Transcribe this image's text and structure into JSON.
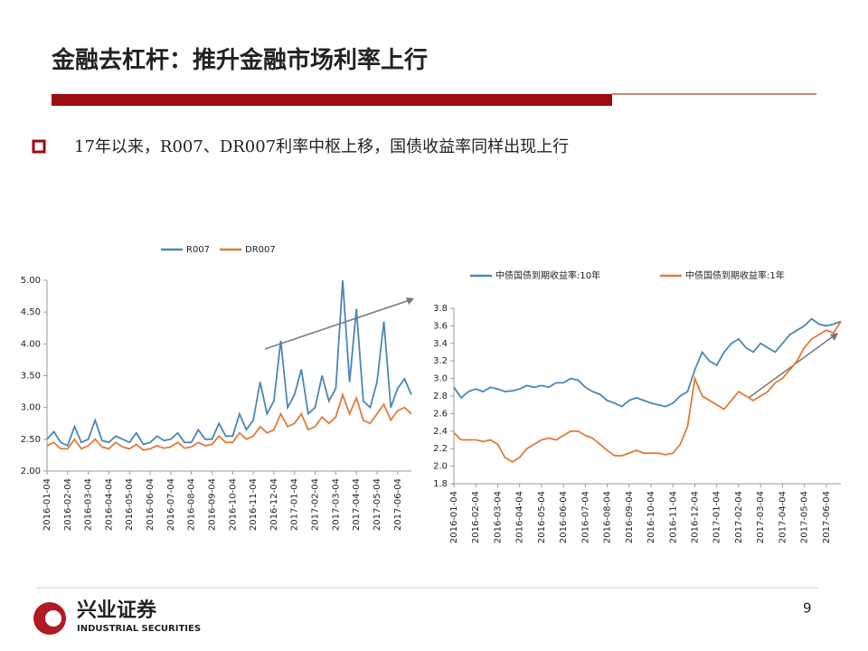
{
  "slide": {
    "title": "金融去杠杆：推升金融市场利率上行",
    "bullet": "17年以来，R007、DR007利率中枢上移，国债收益率同样出现上行",
    "page_number": "9",
    "logo_cn": "兴业证券",
    "logo_en": "INDUSTRIAL SECURITIES"
  },
  "chart_data": [
    {
      "type": "line",
      "grid": false,
      "categories": [
        "2016-01-04",
        null,
        null,
        "2016-02-04",
        null,
        null,
        "2016-03-04",
        null,
        null,
        "2016-04-04",
        null,
        null,
        "2016-05-04",
        null,
        null,
        "2016-06-04",
        null,
        null,
        "2016-07-04",
        null,
        null,
        "2016-08-04",
        null,
        null,
        "2016-09-04",
        null,
        null,
        "2016-10-04",
        null,
        null,
        "2016-11-04",
        null,
        null,
        "2016-12-04",
        null,
        null,
        "2017-01-04",
        null,
        null,
        "2017-02-04",
        null,
        null,
        "2017-03-04",
        null,
        null,
        "2017-04-04",
        null,
        null,
        "2017-05-04",
        null,
        null,
        "2017-06-04",
        null,
        null
      ],
      "series": [
        {
          "name": "R007",
          "color": "#4a86b8",
          "values": [
            2.5,
            2.62,
            2.45,
            2.4,
            2.7,
            2.45,
            2.5,
            2.8,
            2.48,
            2.45,
            2.55,
            2.5,
            2.45,
            2.6,
            2.42,
            2.45,
            2.55,
            2.48,
            2.5,
            2.6,
            2.45,
            2.45,
            2.65,
            2.5,
            2.5,
            2.75,
            2.55,
            2.55,
            2.9,
            2.65,
            2.8,
            3.4,
            2.9,
            3.1,
            4.05,
            3.0,
            3.2,
            3.6,
            2.9,
            3.0,
            3.5,
            3.1,
            3.3,
            5.0,
            3.4,
            4.55,
            3.1,
            3.0,
            3.4,
            4.35,
            3.0,
            3.3,
            3.45,
            3.2
          ]
        },
        {
          "name": "DR007",
          "color": "#e07b39",
          "values": [
            2.4,
            2.45,
            2.35,
            2.35,
            2.5,
            2.35,
            2.4,
            2.5,
            2.38,
            2.35,
            2.45,
            2.38,
            2.35,
            2.42,
            2.33,
            2.35,
            2.4,
            2.36,
            2.38,
            2.45,
            2.36,
            2.38,
            2.45,
            2.4,
            2.42,
            2.55,
            2.45,
            2.45,
            2.6,
            2.5,
            2.55,
            2.7,
            2.6,
            2.65,
            2.9,
            2.7,
            2.75,
            2.9,
            2.65,
            2.7,
            2.85,
            2.75,
            2.85,
            3.2,
            2.9,
            3.15,
            2.8,
            2.75,
            2.9,
            3.05,
            2.8,
            2.95,
            3.0,
            2.9
          ]
        }
      ],
      "ylim": [
        2,
        5
      ],
      "yticks": [
        {
          "value": 2,
          "label": "2.00"
        },
        {
          "value": 2.5,
          "label": "2.50"
        },
        {
          "value": 3,
          "label": "3.00"
        },
        {
          "value": 3.5,
          "label": "3.50"
        },
        {
          "value": 4,
          "label": "4.00"
        },
        {
          "value": 4.5,
          "label": "4.50"
        },
        {
          "value": 5,
          "label": "5.00"
        }
      ]
    },
    {
      "type": "line",
      "grid": false,
      "categories": [
        "2016-01-04",
        null,
        null,
        "2016-02-04",
        null,
        null,
        "2016-03-04",
        null,
        null,
        "2016-04-04",
        null,
        null,
        "2016-05-04",
        null,
        null,
        "2016-06-04",
        null,
        null,
        "2016-07-04",
        null,
        null,
        "2016-08-04",
        null,
        null,
        "2016-09-04",
        null,
        null,
        "2016-10-04",
        null,
        null,
        "2016-11-04",
        null,
        null,
        "2016-12-04",
        null,
        null,
        "2017-01-04",
        null,
        null,
        "2017-02-04",
        null,
        null,
        "2017-03-04",
        null,
        null,
        "2017-04-04",
        null,
        null,
        "2017-05-04",
        null,
        null,
        "2017-06-04",
        null,
        null
      ],
      "series": [
        {
          "name": "中债国债到期收益率:10年",
          "color": "#4a86b8",
          "values": [
            2.9,
            2.78,
            2.85,
            2.88,
            2.85,
            2.9,
            2.88,
            2.85,
            2.86,
            2.88,
            2.92,
            2.9,
            2.92,
            2.9,
            2.95,
            2.95,
            3.0,
            2.98,
            2.9,
            2.85,
            2.82,
            2.75,
            2.72,
            2.68,
            2.75,
            2.78,
            2.75,
            2.72,
            2.7,
            2.68,
            2.72,
            2.8,
            2.85,
            3.1,
            3.3,
            3.2,
            3.15,
            3.3,
            3.4,
            3.45,
            3.35,
            3.3,
            3.4,
            3.35,
            3.3,
            3.4,
            3.5,
            3.55,
            3.6,
            3.68,
            3.62,
            3.6,
            3.62,
            3.65
          ]
        },
        {
          "name": "中债国债到期收益率:1年",
          "color": "#e07b39",
          "values": [
            2.38,
            2.3,
            2.3,
            2.3,
            2.28,
            2.3,
            2.25,
            2.1,
            2.05,
            2.1,
            2.2,
            2.25,
            2.3,
            2.32,
            2.3,
            2.35,
            2.4,
            2.4,
            2.35,
            2.32,
            2.25,
            2.18,
            2.12,
            2.12,
            2.15,
            2.18,
            2.15,
            2.15,
            2.15,
            2.13,
            2.15,
            2.25,
            2.45,
            3.0,
            2.8,
            2.75,
            2.7,
            2.65,
            2.75,
            2.85,
            2.8,
            2.75,
            2.8,
            2.85,
            2.95,
            3.0,
            3.1,
            3.2,
            3.35,
            3.45,
            3.5,
            3.55,
            3.52,
            3.65
          ]
        }
      ],
      "ylim": [
        1.8,
        3.8
      ],
      "yticks": [
        1.8,
        {
          "value": 2,
          "label": "2.0"
        },
        2.2,
        2.4,
        2.6,
        2.8,
        {
          "value": 3,
          "label": "3.0"
        },
        3.2,
        3.4,
        3.6,
        3.8
      ]
    }
  ]
}
